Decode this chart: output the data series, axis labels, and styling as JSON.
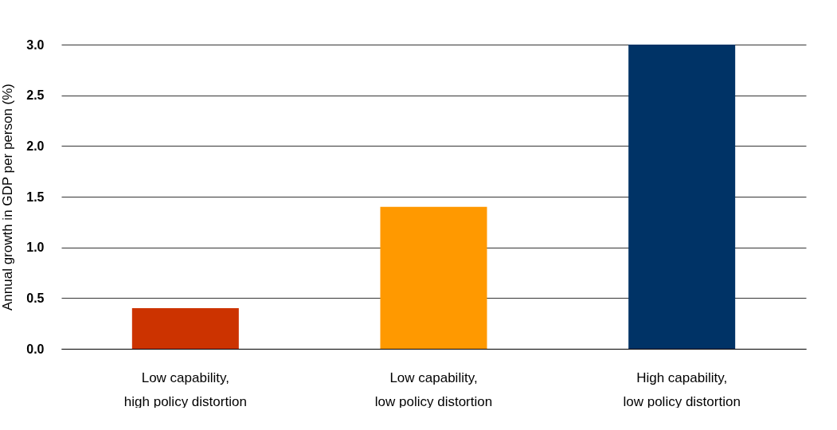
{
  "chart_data": {
    "type": "bar",
    "ylabel": "Annual growth in GDP per person (%)",
    "categories": [
      "Low capability,\nhigh policy distortion",
      "Low capability,\nlow policy distortion",
      "High capability,\nlow policy distortion"
    ],
    "values": [
      0.4,
      1.4,
      3.0
    ],
    "colors": [
      "#cc3300",
      "#ff9900",
      "#003366"
    ],
    "ylim": [
      0,
      3.0
    ],
    "yticks": [
      {
        "value": 0,
        "label": "0.0"
      },
      0.5,
      {
        "value": 1,
        "label": "1.0"
      },
      1.5,
      {
        "value": 2,
        "label": "2.0"
      },
      2.5,
      {
        "value": 3,
        "label": "3.0"
      }
    ],
    "grid": "y"
  }
}
